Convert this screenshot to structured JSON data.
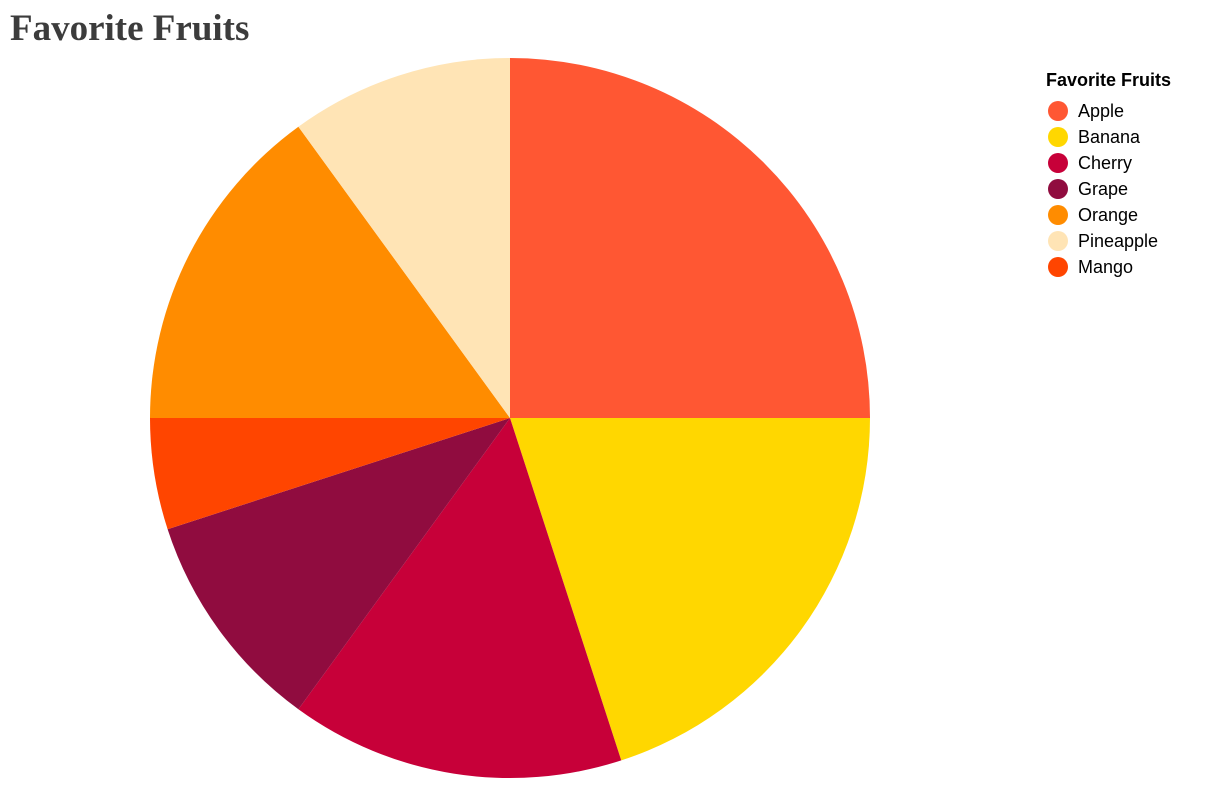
{
  "chart_data": {
    "type": "pie",
    "title": "Favorite Fruits",
    "legend_title": "Favorite Fruits",
    "legend_position": "top-right",
    "slices": [
      {
        "label": "Apple",
        "value": 25,
        "color": "#FF5733"
      },
      {
        "label": "Banana",
        "value": 20,
        "color": "#FFD700"
      },
      {
        "label": "Cherry",
        "value": 15,
        "color": "#C70039"
      },
      {
        "label": "Grape",
        "value": 10,
        "color": "#900C3F"
      },
      {
        "label": "Mango",
        "value": 5,
        "color": "#FF4500"
      },
      {
        "label": "Orange",
        "value": 15,
        "color": "#FF8C00"
      },
      {
        "label": "Pineapple",
        "value": 10,
        "color": "#FFE4B5"
      }
    ],
    "legend_order": [
      "Apple",
      "Banana",
      "Cherry",
      "Grape",
      "Orange",
      "Pineapple",
      "Mango"
    ]
  }
}
